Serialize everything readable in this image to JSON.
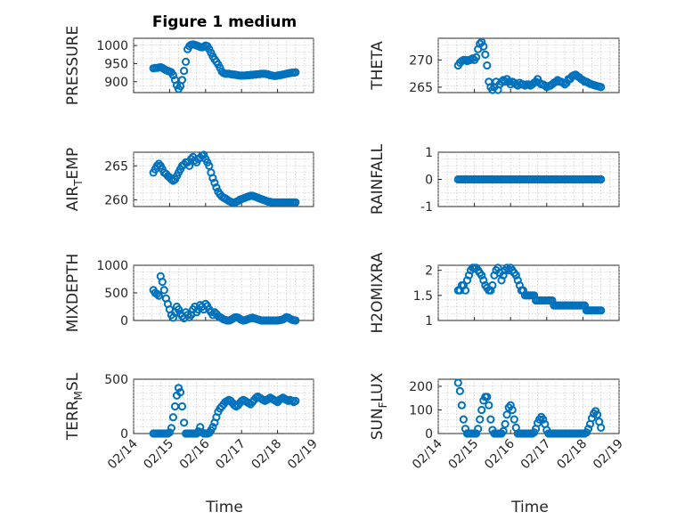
{
  "figure_title": "Figure 1 medium",
  "xlabel": "Time",
  "x_tick_labels": [
    "02/14",
    "02/15",
    "02/16",
    "02/17",
    "02/18",
    "02/19"
  ],
  "marker_color": "#0072bd",
  "chart_data": [
    {
      "type": "scatter",
      "marker": "circle",
      "title": "Figure 1 medium",
      "ylabel": "PRESSURE",
      "xlabel": "",
      "xlim": [
        "02/14",
        "02/19"
      ],
      "ylim": [
        870,
        1020
      ],
      "yticks": [
        900,
        950,
        1000
      ],
      "x_day": [
        0.55,
        0.6,
        0.65,
        0.7,
        0.75,
        0.8,
        0.85,
        0.9,
        0.95,
        1.0,
        1.05,
        1.1,
        1.15,
        1.2,
        1.25,
        1.3,
        1.35,
        1.4,
        1.45,
        1.5,
        1.55,
        1.6,
        1.65,
        1.7,
        1.75,
        1.8,
        1.85,
        1.9,
        1.95,
        2.0,
        2.05,
        2.1,
        2.15,
        2.2,
        2.25,
        2.3,
        2.35,
        2.4,
        2.45,
        2.5,
        2.55,
        2.6,
        2.65,
        2.7,
        2.75,
        2.8,
        2.85,
        2.9,
        2.95,
        3.0,
        3.05,
        3.1,
        3.15,
        3.2,
        3.25,
        3.3,
        3.35,
        3.4,
        3.45,
        3.5,
        3.55,
        3.6,
        3.65,
        3.7,
        3.75,
        3.8,
        3.85,
        3.9,
        3.95,
        4.0,
        4.05,
        4.1,
        4.15,
        4.2,
        4.25,
        4.3,
        4.35,
        4.4,
        4.45,
        4.5
      ],
      "y": [
        937,
        938,
        938,
        939,
        940,
        938,
        935,
        932,
        930,
        928,
        926,
        918,
        905,
        890,
        880,
        888,
        905,
        930,
        955,
        990,
        998,
        1002,
        1003,
        1002,
        1000,
        998,
        996,
        995,
        997,
        1000,
        998,
        990,
        980,
        970,
        962,
        955,
        948,
        938,
        928,
        924,
        922,
        922,
        922,
        921,
        920,
        920,
        919,
        918,
        917,
        917,
        917,
        917,
        918,
        918,
        919,
        919,
        920,
        920,
        921,
        921,
        922,
        922,
        922,
        921,
        920,
        918,
        917,
        916,
        916,
        917,
        918,
        919,
        920,
        921,
        922,
        923,
        924,
        925,
        925,
        926
      ]
    },
    {
      "type": "scatter",
      "marker": "circle",
      "ylabel": "THETA",
      "xlabel": "",
      "xlim": [
        "02/14",
        "02/19"
      ],
      "ylim": [
        264,
        274
      ],
      "yticks": [
        265,
        270
      ],
      "x_day": [
        0.55,
        0.6,
        0.65,
        0.7,
        0.75,
        0.8,
        0.85,
        0.9,
        0.95,
        1.0,
        1.05,
        1.1,
        1.15,
        1.2,
        1.25,
        1.3,
        1.35,
        1.4,
        1.45,
        1.5,
        1.55,
        1.6,
        1.65,
        1.7,
        1.75,
        1.8,
        1.85,
        1.9,
        1.95,
        2.0,
        2.05,
        2.1,
        2.15,
        2.2,
        2.25,
        2.3,
        2.35,
        2.4,
        2.45,
        2.5,
        2.55,
        2.6,
        2.65,
        2.7,
        2.75,
        2.8,
        2.85,
        2.9,
        2.95,
        3.0,
        3.05,
        3.1,
        3.15,
        3.2,
        3.25,
        3.3,
        3.35,
        3.4,
        3.45,
        3.5,
        3.55,
        3.6,
        3.65,
        3.7,
        3.75,
        3.8,
        3.85,
        3.9,
        3.95,
        4.0,
        4.05,
        4.1,
        4.15,
        4.2,
        4.25,
        4.3,
        4.35,
        4.4,
        4.45,
        4.5
      ],
      "y": [
        269.0,
        269.5,
        269.8,
        270.0,
        270.0,
        269.8,
        270.0,
        270.0,
        270.3,
        270.0,
        270.5,
        272.0,
        273.0,
        273.3,
        272.5,
        271.0,
        269.0,
        266.0,
        265.0,
        264.5,
        265.0,
        266.0,
        264.5,
        265.5,
        266.0,
        266.3,
        266.0,
        266.5,
        266.0,
        265.5,
        266.0,
        265.8,
        265.5,
        265.3,
        265.8,
        265.5,
        265.5,
        265.3,
        265.5,
        265.5,
        265.3,
        265.5,
        265.8,
        266.0,
        266.5,
        265.8,
        265.5,
        265.5,
        265.3,
        265.0,
        265.2,
        265.3,
        265.5,
        265.8,
        266.0,
        266.3,
        266.0,
        266.0,
        265.8,
        265.5,
        265.8,
        266.5,
        266.5,
        267.0,
        267.2,
        267.3,
        267.0,
        266.8,
        266.5,
        266.3,
        266.0,
        266.0,
        265.8,
        265.6,
        265.5,
        265.4,
        265.3,
        265.2,
        265.1,
        265.0
      ]
    },
    {
      "type": "scatter",
      "marker": "circle",
      "ylabel": "AIR_T_EMP",
      "xlabel": "",
      "xlim": [
        "02/14",
        "02/19"
      ],
      "ylim": [
        259,
        267
      ],
      "yticks": [
        260,
        265
      ],
      "x_day": [
        0.55,
        0.6,
        0.65,
        0.7,
        0.75,
        0.8,
        0.85,
        0.9,
        0.95,
        1.0,
        1.05,
        1.1,
        1.15,
        1.2,
        1.25,
        1.3,
        1.35,
        1.4,
        1.45,
        1.5,
        1.55,
        1.6,
        1.65,
        1.7,
        1.75,
        1.8,
        1.85,
        1.9,
        1.95,
        2.0,
        2.05,
        2.1,
        2.15,
        2.2,
        2.25,
        2.3,
        2.35,
        2.4,
        2.45,
        2.5,
        2.55,
        2.6,
        2.65,
        2.7,
        2.75,
        2.8,
        2.85,
        2.9,
        2.95,
        3.0,
        3.05,
        3.1,
        3.15,
        3.2,
        3.25,
        3.3,
        3.35,
        3.4,
        3.45,
        3.5,
        3.55,
        3.6,
        3.65,
        3.7,
        3.75,
        3.8,
        3.85,
        3.9,
        3.95,
        4.0,
        4.05,
        4.1,
        4.15,
        4.2,
        4.25,
        4.3,
        4.35,
        4.4,
        4.45,
        4.5
      ],
      "y": [
        264.0,
        264.5,
        265.0,
        265.3,
        265.0,
        264.5,
        264.0,
        263.8,
        263.5,
        263.3,
        263.0,
        262.8,
        263.0,
        263.5,
        264.0,
        264.5,
        265.0,
        265.2,
        265.5,
        265.5,
        265.0,
        266.0,
        266.3,
        265.8,
        265.5,
        266.0,
        266.2,
        266.5,
        266.6,
        266.0,
        265.5,
        265.0,
        264.0,
        263.2,
        262.5,
        261.8,
        261.2,
        260.8,
        260.5,
        260.3,
        260.2,
        260.0,
        259.8,
        259.7,
        259.6,
        259.5,
        259.7,
        259.8,
        260.0,
        260.1,
        260.2,
        260.3,
        260.4,
        260.5,
        260.6,
        260.6,
        260.5,
        260.4,
        260.3,
        260.2,
        260.1,
        260.0,
        259.9,
        259.8,
        259.7,
        259.7,
        259.6,
        259.6,
        259.6,
        259.6,
        259.6,
        259.6,
        259.6,
        259.6,
        259.6,
        259.6,
        259.6,
        259.6,
        259.6,
        259.6
      ]
    },
    {
      "type": "scatter",
      "marker": "circle",
      "ylabel": "RAINFALL",
      "xlabel": "",
      "xlim": [
        "02/14",
        "02/19"
      ],
      "ylim": [
        -1,
        1
      ],
      "yticks": [
        -1,
        0,
        1
      ],
      "x_day": [
        0.55,
        0.6,
        0.65,
        0.7,
        0.75,
        0.8,
        0.85,
        0.9,
        0.95,
        1.0,
        1.05,
        1.1,
        1.15,
        1.2,
        1.25,
        1.3,
        1.35,
        1.4,
        1.45,
        1.5,
        1.55,
        1.6,
        1.65,
        1.7,
        1.75,
        1.8,
        1.85,
        1.9,
        1.95,
        2.0,
        2.05,
        2.1,
        2.15,
        2.2,
        2.25,
        2.3,
        2.35,
        2.4,
        2.45,
        2.5,
        2.55,
        2.6,
        2.65,
        2.7,
        2.75,
        2.8,
        2.85,
        2.9,
        2.95,
        3.0,
        3.05,
        3.1,
        3.15,
        3.2,
        3.25,
        3.3,
        3.35,
        3.4,
        3.45,
        3.5,
        3.55,
        3.6,
        3.65,
        3.7,
        3.75,
        3.8,
        3.85,
        3.9,
        3.95,
        4.0,
        4.05,
        4.1,
        4.15,
        4.2,
        4.25,
        4.3,
        4.35,
        4.4,
        4.45,
        4.5
      ],
      "y": [
        0,
        0,
        0,
        0,
        0,
        0,
        0,
        0,
        0,
        0,
        0,
        0,
        0,
        0,
        0,
        0,
        0,
        0,
        0,
        0,
        0,
        0,
        0,
        0,
        0,
        0,
        0,
        0,
        0,
        0,
        0,
        0,
        0,
        0,
        0,
        0,
        0,
        0,
        0,
        0,
        0,
        0,
        0,
        0,
        0,
        0,
        0,
        0,
        0,
        0,
        0,
        0,
        0,
        0,
        0,
        0,
        0,
        0,
        0,
        0,
        0,
        0,
        0,
        0,
        0,
        0,
        0,
        0,
        0,
        0,
        0,
        0,
        0,
        0,
        0,
        0,
        0,
        0,
        0,
        0
      ]
    },
    {
      "type": "scatter",
      "marker": "circle",
      "ylabel": "MIXDEPTH",
      "xlabel": "",
      "xlim": [
        "02/14",
        "02/19"
      ],
      "ylim": [
        0,
        1000
      ],
      "yticks": [
        0,
        500,
        1000
      ],
      "x_day": [
        0.55,
        0.6,
        0.65,
        0.7,
        0.75,
        0.8,
        0.85,
        0.9,
        0.95,
        1.0,
        1.05,
        1.1,
        1.15,
        1.2,
        1.25,
        1.3,
        1.35,
        1.4,
        1.45,
        1.5,
        1.55,
        1.6,
        1.65,
        1.7,
        1.75,
        1.8,
        1.85,
        1.9,
        1.95,
        2.0,
        2.05,
        2.1,
        2.15,
        2.2,
        2.25,
        2.3,
        2.35,
        2.4,
        2.45,
        2.5,
        2.55,
        2.6,
        2.65,
        2.7,
        2.75,
        2.8,
        2.85,
        2.9,
        2.95,
        3.0,
        3.05,
        3.1,
        3.15,
        3.2,
        3.25,
        3.3,
        3.35,
        3.4,
        3.45,
        3.5,
        3.55,
        3.6,
        3.65,
        3.7,
        3.75,
        3.8,
        3.85,
        3.9,
        3.95,
        4.0,
        4.05,
        4.1,
        4.15,
        4.2,
        4.25,
        4.3,
        4.35,
        4.4,
        4.45,
        4.5
      ],
      "y": [
        550,
        500,
        480,
        450,
        800,
        700,
        550,
        400,
        300,
        200,
        100,
        50,
        150,
        250,
        200,
        120,
        80,
        40,
        150,
        100,
        60,
        100,
        200,
        250,
        150,
        200,
        280,
        250,
        200,
        300,
        260,
        200,
        150,
        100,
        150,
        120,
        80,
        60,
        40,
        20,
        10,
        0,
        0,
        10,
        30,
        50,
        60,
        50,
        30,
        10,
        0,
        5,
        20,
        30,
        40,
        50,
        40,
        30,
        20,
        10,
        0,
        0,
        0,
        0,
        0,
        0,
        0,
        0,
        0,
        0,
        5,
        10,
        20,
        40,
        60,
        50,
        30,
        15,
        5,
        0
      ]
    },
    {
      "type": "scatter",
      "marker": "circle",
      "ylabel": "H2OMIXRA",
      "xlabel": "",
      "xlim": [
        "02/14",
        "02/19"
      ],
      "ylim": [
        1,
        2.1
      ],
      "yticks": [
        1,
        1.5,
        2
      ],
      "x_day": [
        0.55,
        0.6,
        0.65,
        0.7,
        0.75,
        0.8,
        0.85,
        0.9,
        0.95,
        1.0,
        1.05,
        1.1,
        1.15,
        1.2,
        1.25,
        1.3,
        1.35,
        1.4,
        1.45,
        1.5,
        1.55,
        1.6,
        1.65,
        1.7,
        1.75,
        1.8,
        1.85,
        1.9,
        1.95,
        2.0,
        2.05,
        2.1,
        2.15,
        2.2,
        2.25,
        2.3,
        2.35,
        2.4,
        2.45,
        2.5,
        2.55,
        2.6,
        2.65,
        2.7,
        2.75,
        2.8,
        2.85,
        2.9,
        2.95,
        3.0,
        3.05,
        3.1,
        3.15,
        3.2,
        3.25,
        3.3,
        3.35,
        3.4,
        3.45,
        3.5,
        3.55,
        3.6,
        3.65,
        3.7,
        3.75,
        3.8,
        3.85,
        3.9,
        3.95,
        4.0,
        4.05,
        4.1,
        4.15,
        4.2,
        4.25,
        4.3,
        4.35,
        4.4,
        4.45,
        4.5
      ],
      "y": [
        1.6,
        1.6,
        1.7,
        1.7,
        1.6,
        1.8,
        1.9,
        2.0,
        2.05,
        2.05,
        2.05,
        2.0,
        1.95,
        1.9,
        1.8,
        1.7,
        1.65,
        1.6,
        1.6,
        1.7,
        1.9,
        2.0,
        2.05,
        1.95,
        1.8,
        1.9,
        2.0,
        2.05,
        2.0,
        2.05,
        2.0,
        1.95,
        1.9,
        1.8,
        1.7,
        1.6,
        1.6,
        1.5,
        1.5,
        1.5,
        1.5,
        1.5,
        1.5,
        1.4,
        1.4,
        1.4,
        1.4,
        1.4,
        1.4,
        1.4,
        1.4,
        1.4,
        1.4,
        1.3,
        1.3,
        1.3,
        1.3,
        1.3,
        1.3,
        1.3,
        1.3,
        1.3,
        1.3,
        1.3,
        1.3,
        1.3,
        1.3,
        1.3,
        1.3,
        1.3,
        1.3,
        1.2,
        1.2,
        1.2,
        1.2,
        1.2,
        1.2,
        1.2,
        1.2,
        1.2
      ]
    },
    {
      "type": "scatter",
      "marker": "circle",
      "ylabel": "TERR_M_SL",
      "xlabel": "Time",
      "xlim": [
        "02/14",
        "02/19"
      ],
      "ylim": [
        0,
        500
      ],
      "yticks": [
        0,
        500
      ],
      "x_day": [
        0.55,
        0.6,
        0.65,
        0.7,
        0.75,
        0.8,
        0.85,
        0.9,
        0.95,
        1.0,
        1.05,
        1.1,
        1.15,
        1.2,
        1.25,
        1.3,
        1.35,
        1.4,
        1.45,
        1.5,
        1.55,
        1.6,
        1.65,
        1.7,
        1.75,
        1.8,
        1.85,
        1.9,
        1.95,
        2.0,
        2.05,
        2.1,
        2.15,
        2.2,
        2.25,
        2.3,
        2.35,
        2.4,
        2.45,
        2.5,
        2.55,
        2.6,
        2.65,
        2.7,
        2.75,
        2.8,
        2.85,
        2.9,
        2.95,
        3.0,
        3.05,
        3.1,
        3.15,
        3.2,
        3.25,
        3.3,
        3.35,
        3.4,
        3.45,
        3.5,
        3.55,
        3.6,
        3.65,
        3.7,
        3.75,
        3.8,
        3.85,
        3.9,
        3.95,
        4.0,
        4.05,
        4.1,
        4.15,
        4.2,
        4.25,
        4.3,
        4.35,
        4.4,
        4.45,
        4.5
      ],
      "y": [
        0,
        0,
        0,
        0,
        0,
        0,
        0,
        0,
        0,
        10,
        50,
        150,
        250,
        350,
        420,
        380,
        250,
        100,
        0,
        0,
        0,
        0,
        0,
        0,
        0,
        20,
        60,
        10,
        0,
        0,
        0,
        5,
        30,
        60,
        100,
        150,
        200,
        230,
        250,
        270,
        290,
        300,
        310,
        300,
        280,
        260,
        250,
        260,
        280,
        300,
        310,
        300,
        290,
        280,
        270,
        290,
        310,
        330,
        340,
        330,
        320,
        310,
        300,
        310,
        320,
        330,
        320,
        310,
        300,
        290,
        310,
        320,
        330,
        320,
        310,
        300,
        310,
        300,
        290,
        300
      ]
    },
    {
      "type": "scatter",
      "marker": "circle",
      "ylabel": "SUN_F_LUX",
      "xlabel": "Time",
      "xlim": [
        "02/14",
        "02/19"
      ],
      "ylim": [
        0,
        230
      ],
      "yticks": [
        0,
        100,
        200
      ],
      "x_day": [
        0.55,
        0.6,
        0.65,
        0.7,
        0.75,
        0.8,
        0.85,
        0.9,
        0.95,
        1.0,
        1.05,
        1.1,
        1.15,
        1.2,
        1.25,
        1.3,
        1.35,
        1.4,
        1.45,
        1.5,
        1.55,
        1.6,
        1.65,
        1.7,
        1.75,
        1.8,
        1.85,
        1.9,
        1.95,
        2.0,
        2.05,
        2.1,
        2.15,
        2.2,
        2.25,
        2.3,
        2.35,
        2.4,
        2.45,
        2.5,
        2.55,
        2.6,
        2.65,
        2.7,
        2.75,
        2.8,
        2.85,
        2.9,
        2.95,
        3.0,
        3.05,
        3.1,
        3.15,
        3.2,
        3.25,
        3.3,
        3.35,
        3.4,
        3.45,
        3.5,
        3.55,
        3.6,
        3.65,
        3.7,
        3.75,
        3.8,
        3.85,
        3.9,
        3.95,
        4.0,
        4.05,
        4.1,
        4.15,
        4.2,
        4.25,
        4.3,
        4.35,
        4.4,
        4.45,
        4.5
      ],
      "y": [
        215,
        180,
        120,
        60,
        20,
        0,
        0,
        0,
        0,
        0,
        0,
        20,
        60,
        100,
        140,
        155,
        155,
        120,
        60,
        15,
        0,
        0,
        0,
        0,
        0,
        10,
        40,
        80,
        110,
        120,
        100,
        60,
        25,
        0,
        0,
        0,
        0,
        0,
        0,
        0,
        0,
        0,
        5,
        20,
        45,
        60,
        70,
        60,
        40,
        15,
        0,
        0,
        0,
        0,
        0,
        0,
        0,
        0,
        0,
        0,
        0,
        0,
        0,
        0,
        0,
        0,
        0,
        0,
        0,
        0,
        0,
        5,
        20,
        40,
        65,
        85,
        95,
        80,
        50,
        25
      ]
    }
  ]
}
